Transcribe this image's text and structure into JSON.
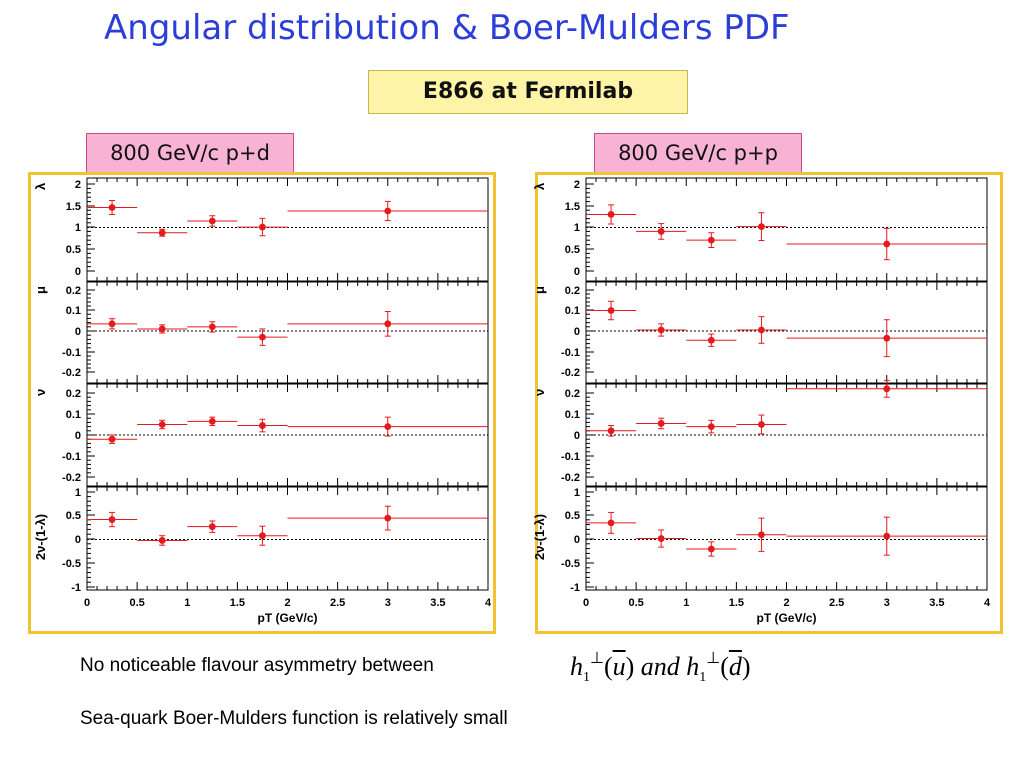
{
  "title": "Angular distribution & Boer-Mulders PDF",
  "experiment": "E866 at Fermilab",
  "beams": {
    "left": "800 GeV/c p+d",
    "right": "800 GeV/c p+p"
  },
  "notes": {
    "line1": "No noticeable flavour asymmetry between",
    "line2": "Sea-quark Boer-Mulders function is relatively small"
  },
  "formula": {
    "h": "h",
    "sub": "1",
    "perp": "⊥",
    "u": "u",
    "d": "d",
    "and": "and"
  },
  "colors": {
    "title": "#2b3fd8",
    "data": "#e41a1c",
    "frame": "#f1c232"
  },
  "chart_data": [
    {
      "type": "scatter",
      "name": "p+d",
      "xlabel": "p_T (GeV/c)",
      "xlim": [
        0,
        4
      ],
      "xticks": [
        "0",
        "0.5",
        "1",
        "1.5",
        "2",
        "2.5",
        "3",
        "3.5",
        "4"
      ],
      "panels": [
        {
          "ylabel": "λ",
          "ylim": [
            0,
            2.1
          ],
          "yticks": [
            "0",
            "0.5",
            "1",
            "1.5",
            "2"
          ],
          "ref": 1,
          "points": [
            {
              "x": 0.25,
              "xerr": [
                0,
                0.5
              ],
              "y": 1.46,
              "yerr": 0.16
            },
            {
              "x": 0.75,
              "xerr": [
                0.5,
                1.0
              ],
              "y": 0.88,
              "yerr": 0.08
            },
            {
              "x": 1.25,
              "xerr": [
                1.0,
                1.5
              ],
              "y": 1.15,
              "yerr": 0.12
            },
            {
              "x": 1.75,
              "xerr": [
                1.5,
                2.0
              ],
              "y": 1.01,
              "yerr": 0.2
            },
            {
              "x": 3.0,
              "xerr": [
                2.0,
                4.0
              ],
              "y": 1.38,
              "yerr": 0.22
            }
          ]
        },
        {
          "ylabel": "μ",
          "ylim": [
            -0.25,
            0.25
          ],
          "yticks": [
            "-0.2",
            "-0.1",
            "0",
            "0.1",
            "0.2"
          ],
          "ref": 0,
          "points": [
            {
              "x": 0.25,
              "xerr": [
                0,
                0.5
              ],
              "y": 0.035,
              "yerr": 0.025
            },
            {
              "x": 0.75,
              "xerr": [
                0.5,
                1.0
              ],
              "y": 0.01,
              "yerr": 0.02
            },
            {
              "x": 1.25,
              "xerr": [
                1.0,
                1.5
              ],
              "y": 0.02,
              "yerr": 0.025
            },
            {
              "x": 1.75,
              "xerr": [
                1.5,
                2.0
              ],
              "y": -0.03,
              "yerr": 0.04
            },
            {
              "x": 3.0,
              "xerr": [
                2.0,
                4.0
              ],
              "y": 0.035,
              "yerr": 0.06
            }
          ]
        },
        {
          "ylabel": "ν",
          "ylim": [
            -0.25,
            0.25
          ],
          "yticks": [
            "-0.2",
            "-0.1",
            "0",
            "0.1",
            "0.2"
          ],
          "ref": 0,
          "points": [
            {
              "x": 0.25,
              "xerr": [
                0,
                0.5
              ],
              "y": -0.02,
              "yerr": 0.02
            },
            {
              "x": 0.75,
              "xerr": [
                0.5,
                1.0
              ],
              "y": 0.05,
              "yerr": 0.02
            },
            {
              "x": 1.25,
              "xerr": [
                1.0,
                1.5
              ],
              "y": 0.065,
              "yerr": 0.02
            },
            {
              "x": 1.75,
              "xerr": [
                1.5,
                2.0
              ],
              "y": 0.045,
              "yerr": 0.03
            },
            {
              "x": 3.0,
              "xerr": [
                2.0,
                4.0
              ],
              "y": 0.04,
              "yerr": 0.045
            }
          ]
        },
        {
          "ylabel": "2ν-(1-λ)",
          "ylim": [
            -1.05,
            1.05
          ],
          "yticks": [
            "-1",
            "-0.5",
            "0",
            "0.5",
            "1"
          ],
          "ref": 0,
          "points": [
            {
              "x": 0.25,
              "xerr": [
                0,
                0.5
              ],
              "y": 0.42,
              "yerr": 0.15
            },
            {
              "x": 0.75,
              "xerr": [
                0.5,
                1.0
              ],
              "y": -0.02,
              "yerr": 0.1
            },
            {
              "x": 1.25,
              "xerr": [
                1.0,
                1.5
              ],
              "y": 0.27,
              "yerr": 0.12
            },
            {
              "x": 1.75,
              "xerr": [
                1.5,
                2.0
              ],
              "y": 0.08,
              "yerr": 0.2
            },
            {
              "x": 3.0,
              "xerr": [
                2.0,
                4.0
              ],
              "y": 0.45,
              "yerr": 0.25
            }
          ]
        }
      ]
    },
    {
      "type": "scatter",
      "name": "p+p",
      "xlabel": "p_T (GeV/c)",
      "xlim": [
        0,
        4
      ],
      "xticks": [
        "0",
        "0.5",
        "1",
        "1.5",
        "2",
        "2.5",
        "3",
        "3.5",
        "4"
      ],
      "panels": [
        {
          "ylabel": "λ",
          "ylim": [
            0,
            2.1
          ],
          "yticks": [
            "0",
            "0.5",
            "1",
            "1.5",
            "2"
          ],
          "ref": 1,
          "points": [
            {
              "x": 0.25,
              "xerr": [
                0,
                0.5
              ],
              "y": 1.3,
              "yerr": 0.22
            },
            {
              "x": 0.75,
              "xerr": [
                0.5,
                1.0
              ],
              "y": 0.91,
              "yerr": 0.18
            },
            {
              "x": 1.25,
              "xerr": [
                1.0,
                1.5
              ],
              "y": 0.71,
              "yerr": 0.17
            },
            {
              "x": 1.75,
              "xerr": [
                1.5,
                2.0
              ],
              "y": 1.02,
              "yerr": 0.32
            },
            {
              "x": 3.0,
              "xerr": [
                2.0,
                4.0
              ],
              "y": 0.62,
              "yerr": 0.36
            }
          ]
        },
        {
          "ylabel": "μ",
          "ylim": [
            -0.25,
            0.25
          ],
          "yticks": [
            "-0.2",
            "-0.1",
            "0",
            "0.1",
            "0.2"
          ],
          "ref": 0,
          "points": [
            {
              "x": 0.25,
              "xerr": [
                0,
                0.5
              ],
              "y": 0.1,
              "yerr": 0.045
            },
            {
              "x": 0.75,
              "xerr": [
                0.5,
                1.0
              ],
              "y": 0.005,
              "yerr": 0.03
            },
            {
              "x": 1.25,
              "xerr": [
                1.0,
                1.5
              ],
              "y": -0.045,
              "yerr": 0.03
            },
            {
              "x": 1.75,
              "xerr": [
                1.5,
                2.0
              ],
              "y": 0.005,
              "yerr": 0.065
            },
            {
              "x": 3.0,
              "xerr": [
                2.0,
                4.0
              ],
              "y": -0.035,
              "yerr": 0.09
            }
          ]
        },
        {
          "ylabel": "ν",
          "ylim": [
            -0.25,
            0.25
          ],
          "yticks": [
            "-0.2",
            "-0.1",
            "0",
            "0.1",
            "0.2"
          ],
          "ref": 0,
          "points": [
            {
              "x": 0.25,
              "xerr": [
                0,
                0.5
              ],
              "y": 0.02,
              "yerr": 0.025
            },
            {
              "x": 0.75,
              "xerr": [
                0.5,
                1.0
              ],
              "y": 0.055,
              "yerr": 0.025
            },
            {
              "x": 1.25,
              "xerr": [
                1.0,
                1.5
              ],
              "y": 0.04,
              "yerr": 0.03
            },
            {
              "x": 1.75,
              "xerr": [
                1.5,
                2.0
              ],
              "y": 0.05,
              "yerr": 0.045
            },
            {
              "x": 3.0,
              "xerr": [
                2.0,
                4.0
              ],
              "y": 0.22,
              "yerr": 0.04
            }
          ]
        },
        {
          "ylabel": "2ν-(1-λ)",
          "ylim": [
            -1.05,
            1.05
          ],
          "yticks": [
            "-1",
            "-0.5",
            "0",
            "0.5",
            "1"
          ],
          "ref": 0,
          "points": [
            {
              "x": 0.25,
              "xerr": [
                0,
                0.5
              ],
              "y": 0.35,
              "yerr": 0.22
            },
            {
              "x": 0.75,
              "xerr": [
                0.5,
                1.0
              ],
              "y": 0.02,
              "yerr": 0.18
            },
            {
              "x": 1.25,
              "xerr": [
                1.0,
                1.5
              ],
              "y": -0.2,
              "yerr": 0.15
            },
            {
              "x": 1.75,
              "xerr": [
                1.5,
                2.0
              ],
              "y": 0.1,
              "yerr": 0.35
            },
            {
              "x": 3.0,
              "xerr": [
                2.0,
                4.0
              ],
              "y": 0.07,
              "yerr": 0.4
            }
          ]
        }
      ]
    }
  ]
}
